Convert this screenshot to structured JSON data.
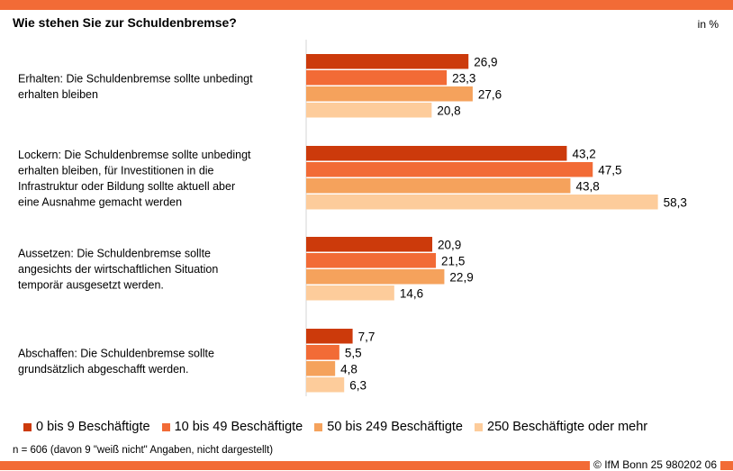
{
  "title": "Wie stehen Sie zur Schuldenbremse?",
  "unit": "in %",
  "footnote": "n = 606 (davon 9 \"weiß nicht\" Angaben, nicht dargestellt)",
  "source": "© IfM Bonn 25 980202 06",
  "colors": {
    "accent": "#f26b36",
    "series": [
      "#cc3a0b",
      "#f26b36",
      "#f5a25c",
      "#fdcc9b"
    ]
  },
  "chart_data": {
    "type": "bar",
    "orientation": "horizontal",
    "title": "Wie stehen Sie zur Schuldenbremse?",
    "unit": "in %",
    "categories": [
      [
        "Erhalten: Die Schuldenbremse sollte unbedingt",
        "erhalten bleiben"
      ],
      [
        "Lockern: Die Schuldenbremse sollte unbedingt",
        "erhalten bleiben, für Investitionen in die",
        "Infrastruktur oder Bildung sollte aktuell aber",
        "eine Ausnahme gemacht werden"
      ],
      [
        "Aussetzen: Die Schuldenbremse sollte",
        "angesichts der wirtschaftlichen Situation",
        "temporär ausgesetzt werden."
      ],
      [
        "Abschaffen: Die Schuldenbremse sollte",
        "grundsätzlich abgeschafft werden."
      ]
    ],
    "series": [
      {
        "name": "0 bis 9 Beschäftigte",
        "values": [
          "26,9",
          "43,2",
          "20,9",
          "7,7"
        ]
      },
      {
        "name": "10 bis 49 Beschäftigte",
        "values": [
          "23,3",
          "47,5",
          "21,5",
          "5,5"
        ]
      },
      {
        "name": "50 bis 249 Beschäftigte",
        "values": [
          "27,6",
          "43,8",
          "22,9",
          "4,8"
        ]
      },
      {
        "name": "250 Beschäftigte oder mehr",
        "values": [
          "20,8",
          "58,3",
          "14,6",
          "6,3"
        ]
      }
    ],
    "xlim": [
      0,
      70
    ],
    "grid": false,
    "legend": "bottom"
  }
}
